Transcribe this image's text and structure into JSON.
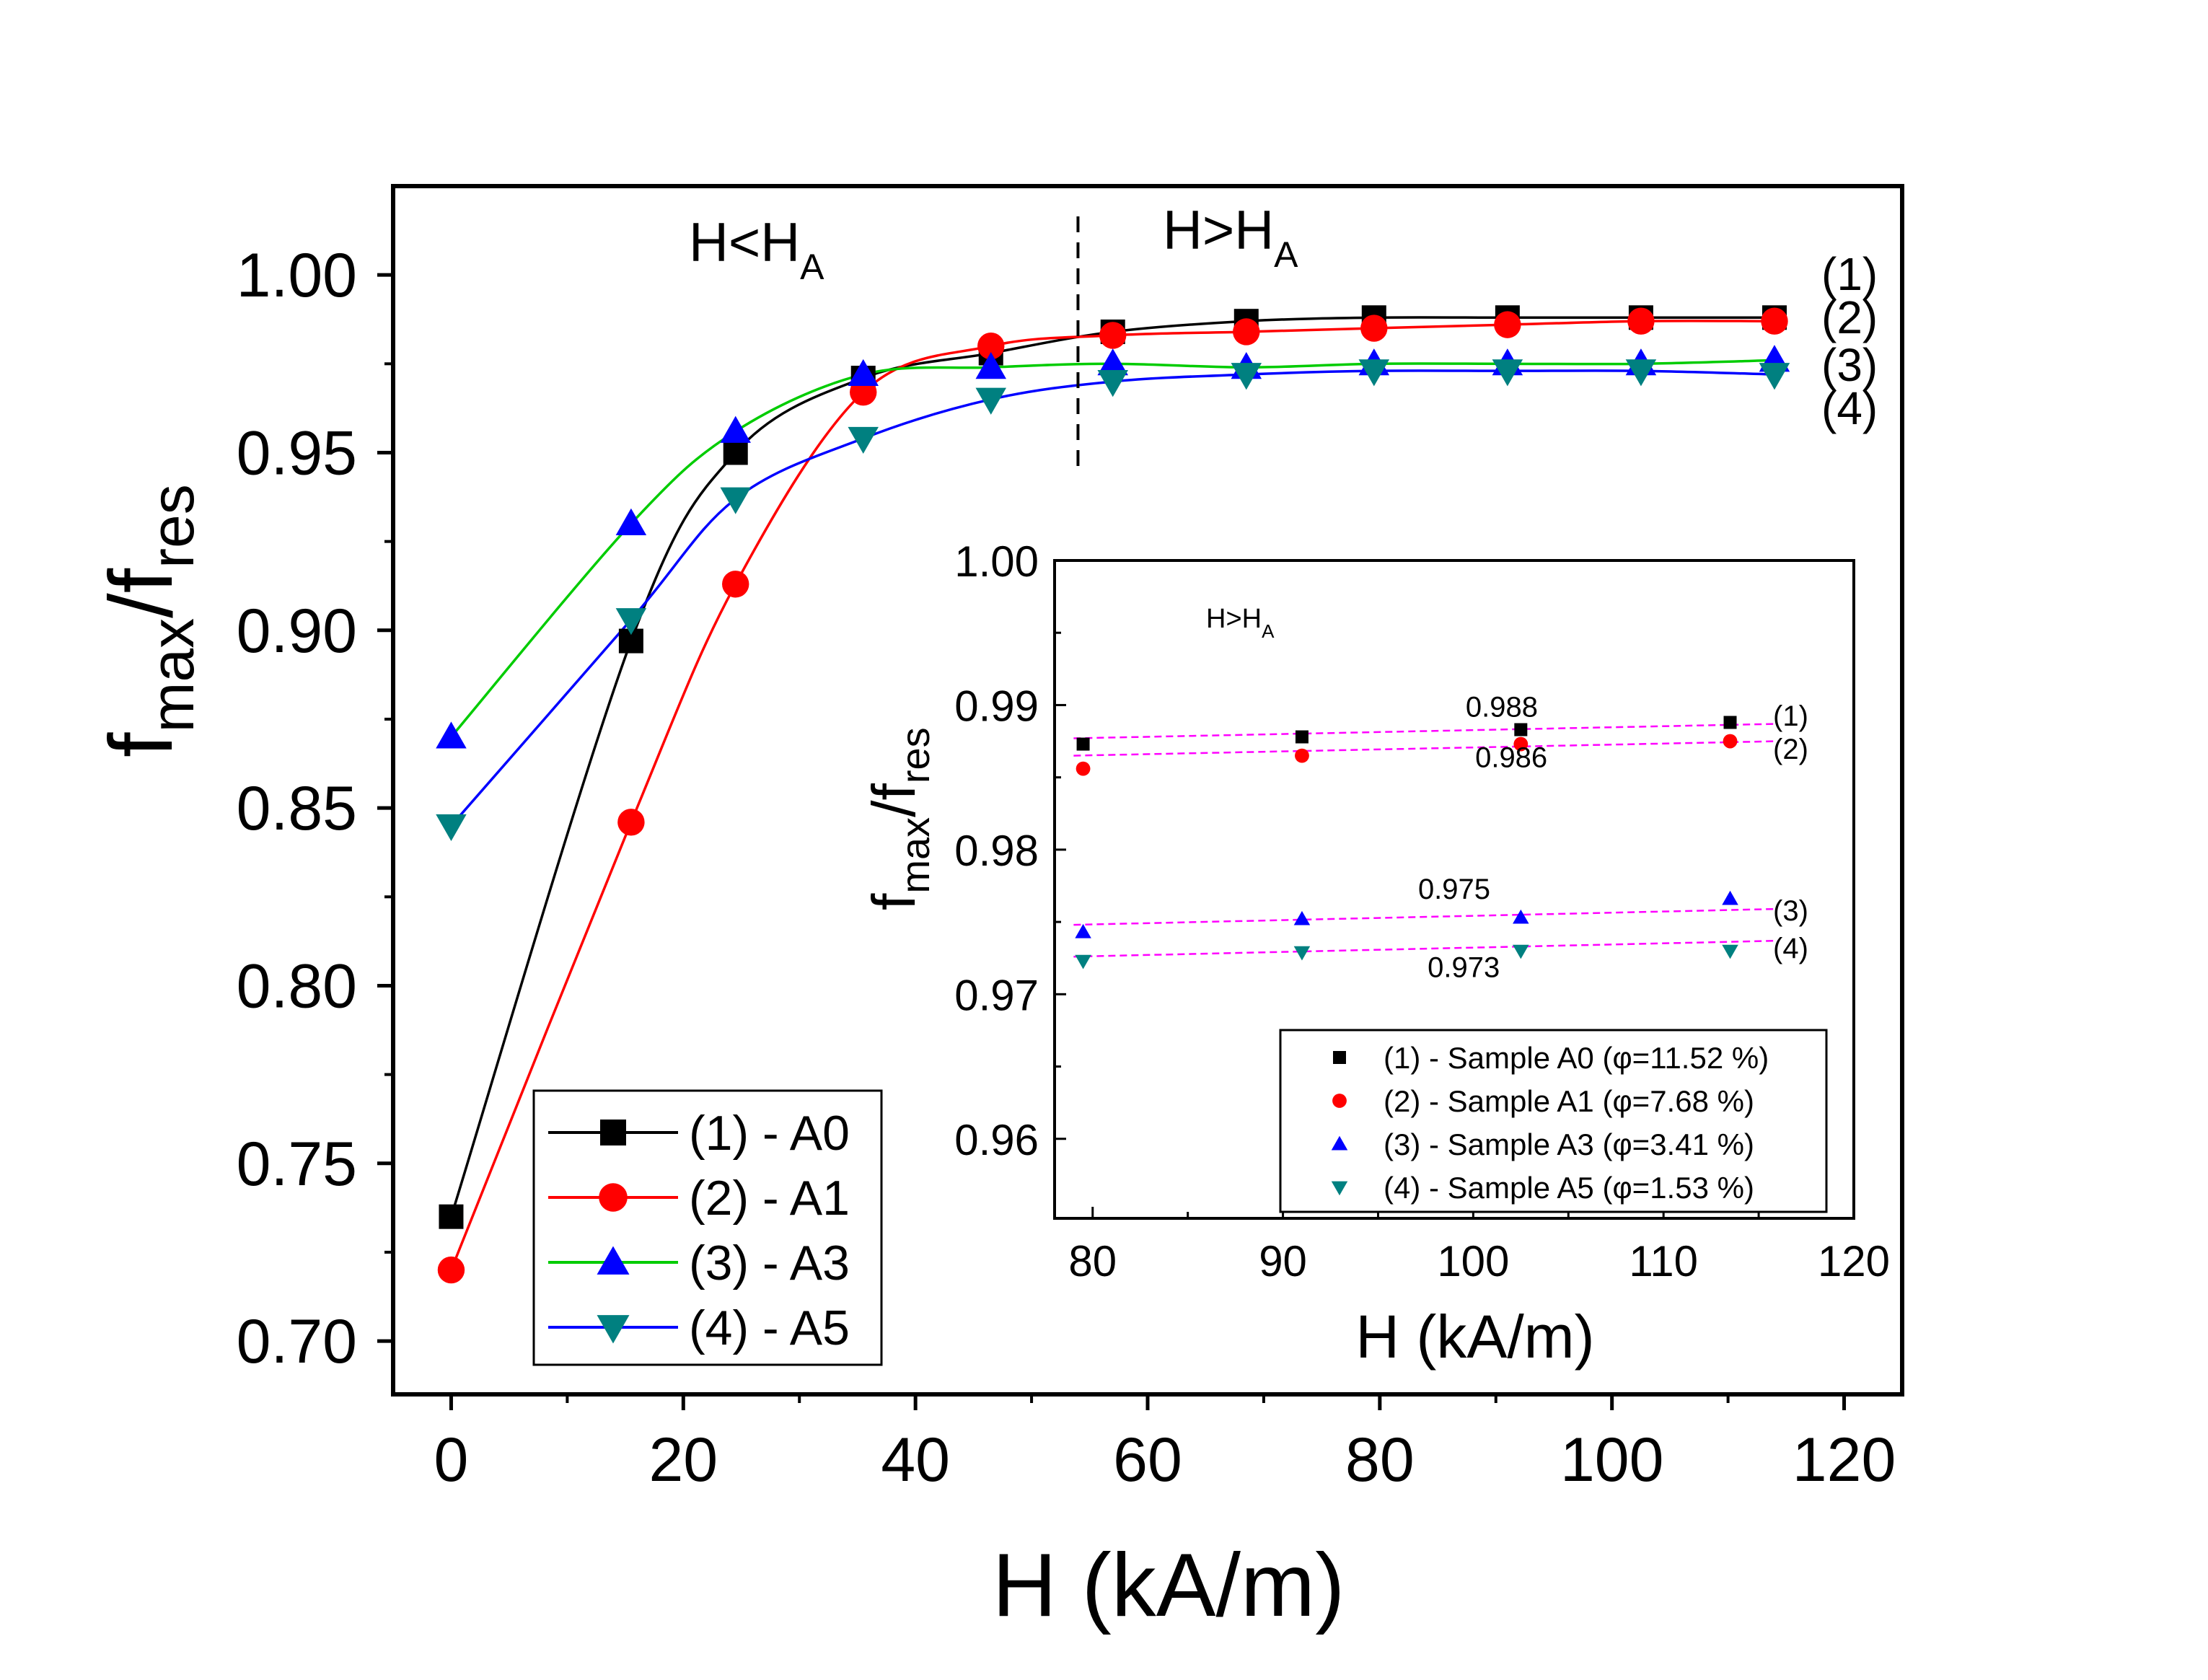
{
  "chart_data": [
    {
      "type": "line",
      "xlabel": "H (kA/m)",
      "ylabel": {
        "main": "f",
        "sub1": "max",
        "mid": "/f",
        "sub2": "res"
      },
      "xlim": [
        -5,
        125
      ],
      "ylim": [
        0.685,
        1.025
      ],
      "xticks": [
        0,
        20,
        40,
        60,
        80,
        100,
        120
      ],
      "xtick_labels": [
        "0",
        "20",
        "40",
        "60",
        "80",
        "100",
        "120"
      ],
      "yticks": [
        0.7,
        0.75,
        0.8,
        0.85,
        0.9,
        0.95,
        1.0
      ],
      "ytick_labels": [
        "0.70",
        "0.75",
        "0.80",
        "0.85",
        "0.90",
        "0.95",
        "1.00"
      ],
      "regions": {
        "left": {
          "main": "H<H",
          "sub": "A"
        },
        "right": {
          "main": "H>H",
          "sub": "A"
        },
        "boundary_x": 54
      },
      "series": [
        {
          "name": "(1) - A0",
          "tag": "(1)",
          "marker": "square",
          "marker_color": "#000000",
          "line_color": "#000000",
          "x": [
            0,
            15.5,
            24.5,
            35.5,
            46.5,
            57,
            68.5,
            79.5,
            91,
            102.5,
            114
          ],
          "y": [
            0.735,
            0.897,
            0.95,
            0.971,
            0.978,
            0.984,
            0.987,
            0.988,
            0.988,
            0.988,
            0.988
          ]
        },
        {
          "name": "(2) - A1",
          "tag": "(2)",
          "marker": "circle",
          "marker_color": "#ff0000",
          "line_color": "#ff0000",
          "x": [
            0,
            15.5,
            24.5,
            35.5,
            46.5,
            57,
            68.5,
            79.5,
            91,
            102.5,
            114
          ],
          "y": [
            0.72,
            0.846,
            0.913,
            0.967,
            0.98,
            0.983,
            0.984,
            0.985,
            0.986,
            0.987,
            0.987
          ]
        },
        {
          "name": "(3) - A3",
          "tag": "(3)",
          "marker": "triangle-up",
          "marker_color": "#0000ff",
          "line_color": "#00cc00",
          "x": [
            0,
            15.5,
            24.5,
            35.5,
            46.5,
            57,
            68.5,
            79.5,
            91,
            102.5,
            114
          ],
          "y": [
            0.87,
            0.93,
            0.956,
            0.972,
            0.974,
            0.975,
            0.974,
            0.975,
            0.975,
            0.975,
            0.976
          ]
        },
        {
          "name": "(4) - A5",
          "tag": "(4)",
          "marker": "triangle-down",
          "marker_color": "#008080",
          "line_color": "#0000ff",
          "x": [
            0,
            15.5,
            24.5,
            35.5,
            46.5,
            57,
            68.5,
            79.5,
            91,
            102.5,
            114
          ],
          "y": [
            0.845,
            0.903,
            0.937,
            0.954,
            0.965,
            0.97,
            0.972,
            0.973,
            0.973,
            0.973,
            0.972
          ]
        }
      ]
    },
    {
      "type": "scatter",
      "inset": true,
      "xlabel": "H (kA/m)",
      "ylabel": {
        "main": "f",
        "sub1": "max",
        "mid": "/f",
        "sub2": "res"
      },
      "xlim": [
        78,
        120
      ],
      "ylim": [
        0.9545,
        1.0
      ],
      "xticks": [
        80,
        90,
        100,
        110,
        120
      ],
      "xtick_labels": [
        "80",
        "90",
        "100",
        "110",
        "120"
      ],
      "yticks": [
        0.96,
        0.97,
        0.98,
        0.99,
        1.0
      ],
      "ytick_labels": [
        "0.96",
        "0.97",
        "0.98",
        "0.99",
        "1.00"
      ],
      "region": {
        "main": "H>H",
        "sub": "A"
      },
      "fit_line_color": "#ff00ff",
      "series": [
        {
          "name": "(1) - Sample A0 (φ=11.52 %)",
          "tag": "(1)",
          "marker": "square",
          "color": "#000000",
          "x": [
            79.5,
            91,
            102.5,
            113.5
          ],
          "y": [
            0.9873,
            0.9878,
            0.9883,
            0.9888
          ],
          "fit": {
            "x": [
              79,
              116
            ],
            "y": [
              0.9877,
              0.9887
            ]
          }
        },
        {
          "name": "(2) - Sample A1 (φ=7.68 %)",
          "tag": "(2)",
          "marker": "circle",
          "color": "#ff0000",
          "x": [
            79.5,
            91,
            102.5,
            113.5
          ],
          "y": [
            0.9856,
            0.9865,
            0.9873,
            0.9875
          ],
          "fit": {
            "x": [
              79,
              116
            ],
            "y": [
              0.9865,
              0.9875
            ]
          }
        },
        {
          "name": "(3) - Sample A3 (φ=3.41 %)",
          "tag": "(3)",
          "marker": "triangle-up",
          "color": "#0000ff",
          "x": [
            79.5,
            91,
            102.5,
            113.5
          ],
          "y": [
            0.9743,
            0.9752,
            0.9753,
            0.9766
          ],
          "fit": {
            "x": [
              79,
              116
            ],
            "y": [
              0.9748,
              0.9759
            ]
          }
        },
        {
          "name": "(4) - Sample A5 (φ=1.53 %)",
          "tag": "(4)",
          "marker": "triangle-down",
          "color": "#008080",
          "x": [
            79.5,
            91,
            102.5,
            113.5
          ],
          "y": [
            0.9723,
            0.9729,
            0.973,
            0.973
          ],
          "fit": {
            "x": [
              79,
              116
            ],
            "y": [
              0.9726,
              0.9737
            ]
          }
        }
      ],
      "annotations": [
        {
          "text": "0.988",
          "x": 101.5,
          "y": 0.9892
        },
        {
          "text": "0.986",
          "x": 102,
          "y": 0.9857
        },
        {
          "text": "0.975",
          "x": 99,
          "y": 0.9766
        },
        {
          "text": "0.973",
          "x": 99.5,
          "y": 0.9712
        }
      ]
    }
  ]
}
